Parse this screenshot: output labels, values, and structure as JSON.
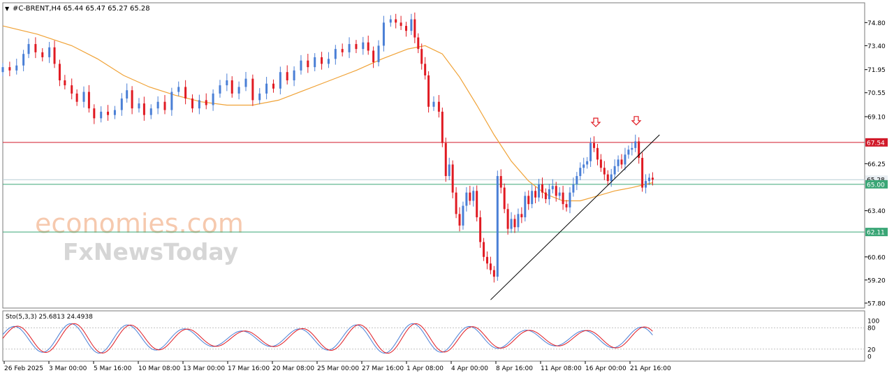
{
  "header": {
    "symbol_line": "#C-BRENT,H4  65.44 65.47 65.27 65.28",
    "menu_arrow": "▼"
  },
  "watermark": {
    "line1": "economies.com",
    "line2": "FxNewsToday"
  },
  "oscillator": {
    "label": "Sto(5,3,3) 25.6813 24.4938",
    "levels": [
      "100",
      "80",
      "20",
      "0"
    ]
  },
  "colors": {
    "bull": "#4a7fd6",
    "bear": "#e01a22",
    "ma": "#f0a236",
    "resistance": "#d11a2a",
    "support": "#3aa676",
    "current": "#b9cdd6"
  },
  "chart_data": {
    "type": "candlestick",
    "timeframe": "H4",
    "ylim": [
      57.5,
      76.0
    ],
    "y_ticks": [
      "74.80",
      "73.40",
      "71.95",
      "70.55",
      "69.10",
      "66.25",
      "63.40",
      "60.60",
      "59.20",
      "57.80"
    ],
    "x_ticks": [
      "26 Feb 2025",
      "3 Mar 00:00",
      "5 Mar 16:00",
      "10 Mar 08:00",
      "13 Mar 00:00",
      "17 Mar 16:00",
      "20 Mar 08:00",
      "25 Mar 00:00",
      "27 Mar 16:00",
      "1 Apr 08:00",
      "4 Apr 00:00",
      "8 Apr 16:00",
      "11 Apr 08:00",
      "16 Apr 00:00",
      "21 Apr 16:00"
    ],
    "levels": [
      {
        "value": 67.54,
        "label": "67.54"
      },
      {
        "value": 65.0,
        "label": "65.00"
      },
      {
        "value": 62.11,
        "label": "62.11"
      }
    ],
    "current_price": {
      "value": 65.28,
      "label": "65.28"
    },
    "trendline": [
      {
        "t": 0.566,
        "v": 58.0
      },
      {
        "t": 0.762,
        "v": 68.0
      }
    ],
    "signals": [
      {
        "t": 0.688,
        "v": 68.5
      },
      {
        "t": 0.735,
        "v": 68.6
      }
    ],
    "closes": [
      [
        0.0,
        72.1
      ],
      [
        0.008,
        71.9
      ],
      [
        0.016,
        72.2
      ],
      [
        0.024,
        72.9
      ],
      [
        0.03,
        73.5
      ],
      [
        0.038,
        73.0
      ],
      [
        0.046,
        72.7
      ],
      [
        0.054,
        73.3
      ],
      [
        0.06,
        72.3
      ],
      [
        0.066,
        71.3
      ],
      [
        0.072,
        71.0
      ],
      [
        0.08,
        70.5
      ],
      [
        0.086,
        70.0
      ],
      [
        0.094,
        70.6
      ],
      [
        0.1,
        69.6
      ],
      [
        0.106,
        69.0
      ],
      [
        0.114,
        69.4
      ],
      [
        0.122,
        69.2
      ],
      [
        0.13,
        69.5
      ],
      [
        0.138,
        70.2
      ],
      [
        0.144,
        70.7
      ],
      [
        0.15,
        69.6
      ],
      [
        0.158,
        69.9
      ],
      [
        0.164,
        69.2
      ],
      [
        0.172,
        69.6
      ],
      [
        0.18,
        70.0
      ],
      [
        0.188,
        69.5
      ],
      [
        0.196,
        70.6
      ],
      [
        0.204,
        70.9
      ],
      [
        0.212,
        70.2
      ],
      [
        0.22,
        69.6
      ],
      [
        0.228,
        70.1
      ],
      [
        0.236,
        69.8
      ],
      [
        0.244,
        70.5
      ],
      [
        0.252,
        71.0
      ],
      [
        0.26,
        71.3
      ],
      [
        0.266,
        70.5
      ],
      [
        0.274,
        70.9
      ],
      [
        0.282,
        71.4
      ],
      [
        0.29,
        70.1
      ],
      [
        0.298,
        70.5
      ],
      [
        0.306,
        71.1
      ],
      [
        0.314,
        70.8
      ],
      [
        0.322,
        71.8
      ],
      [
        0.33,
        71.3
      ],
      [
        0.338,
        71.9
      ],
      [
        0.346,
        72.5
      ],
      [
        0.354,
        72.1
      ],
      [
        0.362,
        72.7
      ],
      [
        0.37,
        72.3
      ],
      [
        0.378,
        72.6
      ],
      [
        0.386,
        73.2
      ],
      [
        0.394,
        73.0
      ],
      [
        0.402,
        73.5
      ],
      [
        0.41,
        73.2
      ],
      [
        0.418,
        73.6
      ],
      [
        0.424,
        73.1
      ],
      [
        0.43,
        72.4
      ],
      [
        0.436,
        73.4
      ],
      [
        0.442,
        74.8
      ],
      [
        0.45,
        75.0
      ],
      [
        0.456,
        74.8
      ],
      [
        0.462,
        74.6
      ],
      [
        0.468,
        74.3
      ],
      [
        0.474,
        75.0
      ],
      [
        0.478,
        73.9
      ],
      [
        0.482,
        73.2
      ],
      [
        0.486,
        72.3
      ],
      [
        0.49,
        71.6
      ],
      [
        0.494,
        69.7
      ],
      [
        0.5,
        70.0
      ],
      [
        0.506,
        69.4
      ],
      [
        0.51,
        67.5
      ],
      [
        0.514,
        65.5
      ],
      [
        0.518,
        66.2
      ],
      [
        0.522,
        64.5
      ],
      [
        0.526,
        63.2
      ],
      [
        0.53,
        62.5
      ],
      [
        0.534,
        63.7
      ],
      [
        0.538,
        64.5
      ],
      [
        0.542,
        64.0
      ],
      [
        0.546,
        64.6
      ],
      [
        0.55,
        63.0
      ],
      [
        0.554,
        61.5
      ],
      [
        0.558,
        60.6
      ],
      [
        0.562,
        60.2
      ],
      [
        0.566,
        59.8
      ],
      [
        0.57,
        59.4
      ],
      [
        0.574,
        65.5
      ],
      [
        0.578,
        64.8
      ],
      [
        0.582,
        63.5
      ],
      [
        0.586,
        62.3
      ],
      [
        0.59,
        62.9
      ],
      [
        0.594,
        62.4
      ],
      [
        0.598,
        63.2
      ],
      [
        0.602,
        63.0
      ],
      [
        0.606,
        64.3
      ],
      [
        0.61,
        63.8
      ],
      [
        0.614,
        64.6
      ],
      [
        0.618,
        64.2
      ],
      [
        0.622,
        65.0
      ],
      [
        0.626,
        64.5
      ],
      [
        0.63,
        64.1
      ],
      [
        0.634,
        64.7
      ],
      [
        0.638,
        64.9
      ],
      [
        0.642,
        64.3
      ],
      [
        0.646,
        64.5
      ],
      [
        0.65,
        63.8
      ],
      [
        0.654,
        63.6
      ],
      [
        0.658,
        64.5
      ],
      [
        0.662,
        65.0
      ],
      [
        0.666,
        65.5
      ],
      [
        0.67,
        66.0
      ],
      [
        0.674,
        66.2
      ],
      [
        0.678,
        66.4
      ],
      [
        0.682,
        67.5
      ],
      [
        0.686,
        67.2
      ],
      [
        0.69,
        66.5
      ],
      [
        0.694,
        66.0
      ],
      [
        0.698,
        65.6
      ],
      [
        0.702,
        65.2
      ],
      [
        0.706,
        65.6
      ],
      [
        0.71,
        66.1
      ],
      [
        0.714,
        66.5
      ],
      [
        0.718,
        66.2
      ],
      [
        0.722,
        66.8
      ],
      [
        0.726,
        67.1
      ],
      [
        0.73,
        67.2
      ],
      [
        0.734,
        67.6
      ],
      [
        0.738,
        66.6
      ],
      [
        0.742,
        64.8
      ],
      [
        0.746,
        65.2
      ],
      [
        0.75,
        65.4
      ],
      [
        0.754,
        65.28
      ]
    ],
    "ma_points": [
      [
        0.0,
        74.6
      ],
      [
        0.04,
        74.1
      ],
      [
        0.08,
        73.4
      ],
      [
        0.11,
        72.6
      ],
      [
        0.14,
        71.6
      ],
      [
        0.17,
        70.9
      ],
      [
        0.2,
        70.4
      ],
      [
        0.23,
        70.0
      ],
      [
        0.26,
        69.8
      ],
      [
        0.29,
        69.8
      ],
      [
        0.32,
        70.1
      ],
      [
        0.35,
        70.7
      ],
      [
        0.38,
        71.3
      ],
      [
        0.41,
        71.9
      ],
      [
        0.44,
        72.6
      ],
      [
        0.47,
        73.2
      ],
      [
        0.49,
        73.4
      ],
      [
        0.51,
        72.9
      ],
      [
        0.53,
        71.5
      ],
      [
        0.55,
        69.8
      ],
      [
        0.57,
        68.0
      ],
      [
        0.59,
        66.4
      ],
      [
        0.61,
        65.2
      ],
      [
        0.63,
        64.4
      ],
      [
        0.65,
        64.0
      ],
      [
        0.67,
        64.0
      ],
      [
        0.69,
        64.3
      ],
      [
        0.71,
        64.6
      ],
      [
        0.73,
        64.8
      ],
      [
        0.754,
        65.1
      ]
    ]
  }
}
